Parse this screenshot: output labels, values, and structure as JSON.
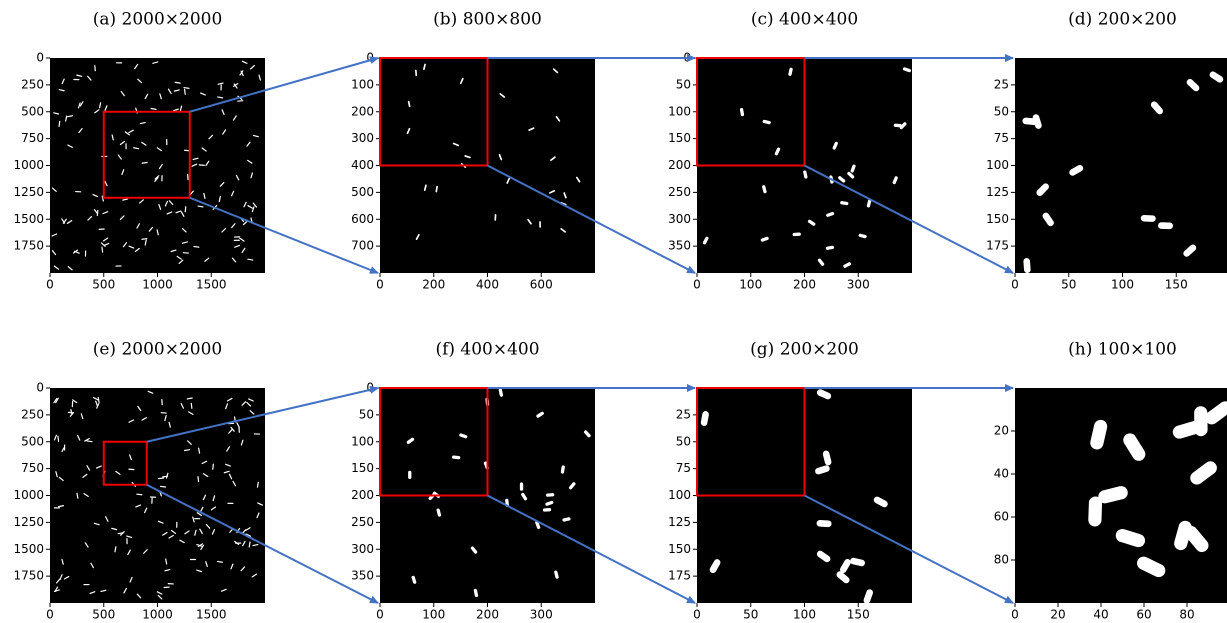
{
  "panels": [
    {
      "title": "(a) 2000×2000",
      "extent": 2000,
      "xticks": [
        0,
        500,
        1000,
        1500
      ],
      "yticks": [
        0,
        250,
        500,
        750,
        1000,
        1250,
        1500,
        1750
      ],
      "zoom": [
        500,
        1300
      ]
    },
    {
      "title": "(b) 800×800",
      "extent": 800,
      "xticks": [
        0,
        200,
        400,
        600
      ],
      "yticks": [
        0,
        100,
        200,
        300,
        400,
        500,
        600,
        700
      ],
      "zoom": [
        0,
        400
      ]
    },
    {
      "title": "(c) 400×400",
      "extent": 400,
      "xticks": [
        0,
        100,
        200,
        300
      ],
      "yticks": [
        0,
        50,
        100,
        150,
        200,
        250,
        300,
        350
      ],
      "zoom": [
        0,
        200
      ]
    },
    {
      "title": "(d) 200×200",
      "extent": 200,
      "xticks": [
        0,
        50,
        100,
        150
      ],
      "yticks": [
        25,
        50,
        75,
        100,
        125,
        150,
        175
      ]
    },
    {
      "title": "(e) 2000×2000",
      "extent": 2000,
      "xticks": [
        0,
        500,
        1000,
        1500
      ],
      "yticks": [
        0,
        250,
        500,
        750,
        1000,
        1250,
        1500,
        1750
      ],
      "zoom": [
        500,
        900
      ]
    },
    {
      "title": "(f) 400×400",
      "extent": 400,
      "xticks": [
        0,
        100,
        200,
        300
      ],
      "yticks": [
        0,
        50,
        100,
        150,
        200,
        250,
        300,
        350
      ],
      "zoom": [
        0,
        200
      ]
    },
    {
      "title": "(g) 200×200",
      "extent": 200,
      "xticks": [
        0,
        50,
        100,
        150
      ],
      "yticks": [
        25,
        50,
        75,
        100,
        125,
        150,
        175
      ],
      "zoom": [
        0,
        100
      ]
    },
    {
      "title": "(h) 100×100",
      "extent": 100,
      "xticks": [
        0,
        20,
        40,
        60,
        80
      ],
      "yticks": [
        20,
        40,
        60,
        80
      ]
    }
  ]
}
